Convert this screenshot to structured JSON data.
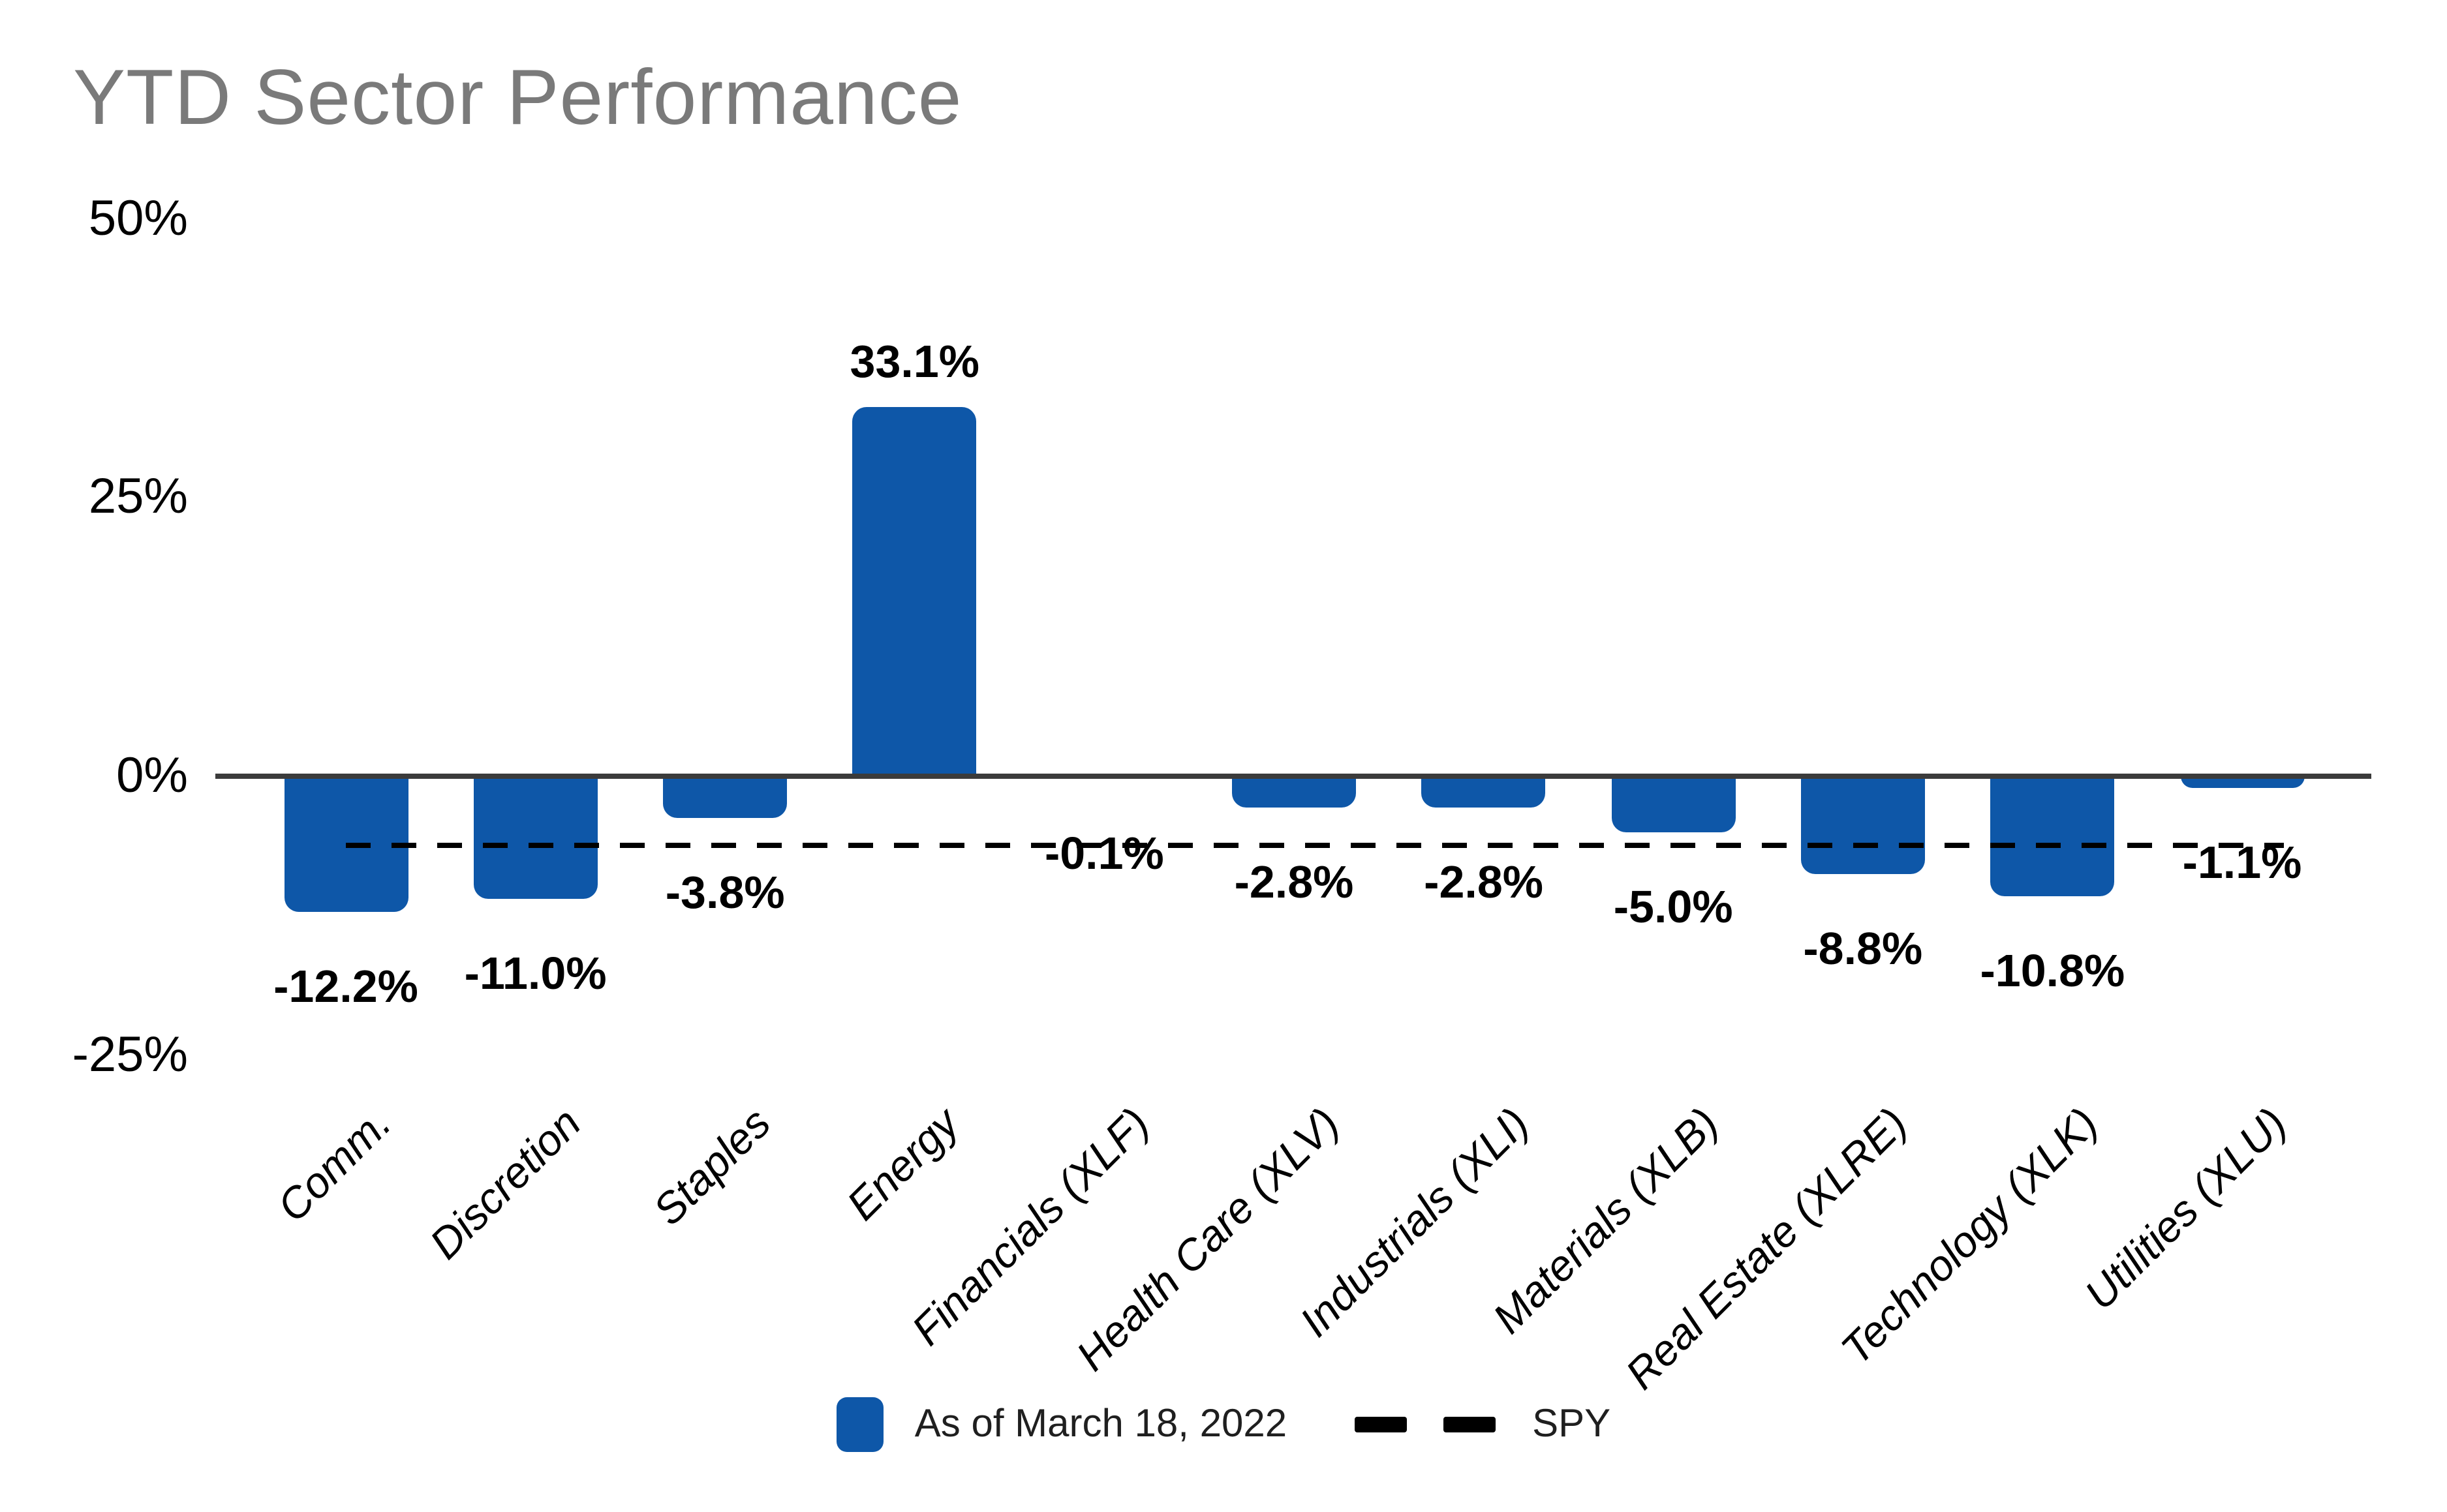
{
  "title": "YTD Sector Performance",
  "legend": {
    "bar_series_label": "As of March 18, 2022",
    "line_series_label": "SPY"
  },
  "colors": {
    "bar": "#0E57A8",
    "title_text": "#7A7A7A",
    "axis_line": "#3B3B3B",
    "spy_line": "#000000"
  },
  "chart_data": {
    "type": "bar",
    "title": "YTD Sector Performance",
    "categories": [
      "Comm.",
      "Discretion",
      "Staples",
      "Energy",
      "Financials (XLF)",
      "Health Care (XLV)",
      "Industrials (XLI)",
      "Materials (XLB)",
      "Real Estate (XLRE)",
      "Technology (XLK)",
      "Utilities (XLU)"
    ],
    "series": [
      {
        "name": "As of March 18, 2022",
        "type": "bar",
        "values": [
          -12.2,
          -11.0,
          -3.8,
          33.1,
          -0.1,
          -2.8,
          -2.8,
          -5.0,
          -8.8,
          -10.8,
          -1.1
        ]
      },
      {
        "name": "SPY",
        "type": "line",
        "line_style": "dashed",
        "value": -6.2
      }
    ],
    "data_labels": [
      "-12.2%",
      "-11.0%",
      "-3.8%",
      "33.1%",
      "-0.1%",
      "-2.8%",
      "-2.8%",
      "-5.0%",
      "-8.8%",
      "-10.8%",
      "-1.1%"
    ],
    "yticks": [
      {
        "value": 50,
        "label": "50%"
      },
      {
        "value": 25,
        "label": "25%"
      },
      {
        "value": 0,
        "label": "0%"
      },
      {
        "value": -25,
        "label": "-25%"
      }
    ],
    "ylim": [
      -27,
      52
    ],
    "grid": false,
    "legend_position": "bottom-center",
    "bar_corners": "rounded-outer-end"
  }
}
